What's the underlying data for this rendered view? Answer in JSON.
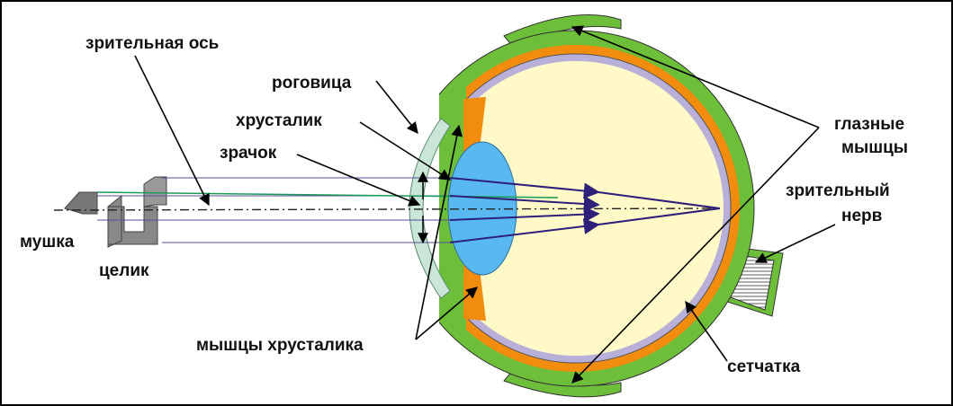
{
  "labels": [
    {
      "text": "зрительная ось"
    },
    {
      "text": "роговица"
    },
    {
      "text": "хрусталик"
    },
    {
      "text": "зрачок"
    },
    {
      "text": "мушка"
    },
    {
      "text": "целик"
    },
    {
      "text": "мышцы хрусталика"
    },
    {
      "lines": [
        "глазные",
        "мышцы"
      ]
    },
    {
      "lines": [
        "зрительный",
        "нерв"
      ]
    },
    {
      "text": "сетчатка"
    }
  ]
}
